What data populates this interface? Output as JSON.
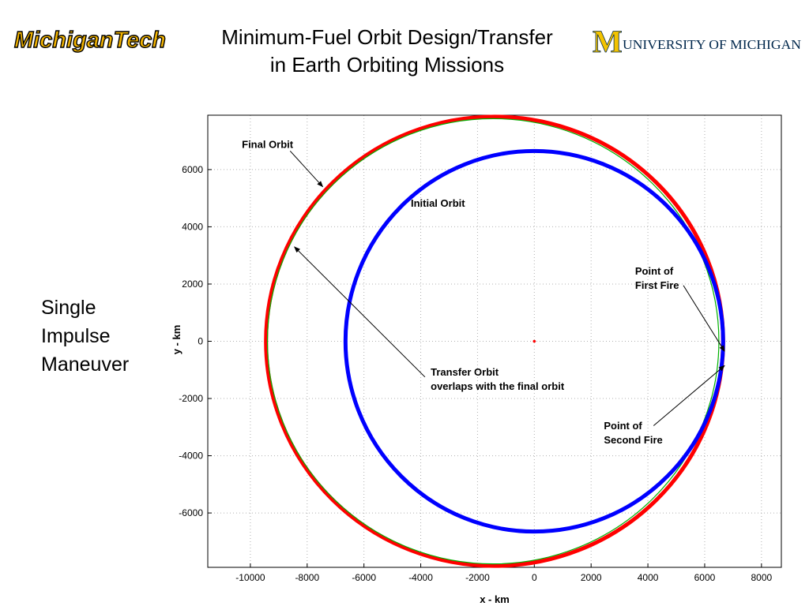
{
  "header": {
    "title_line1": "Minimum-Fuel Orbit Design/Transfer",
    "title_line2": "in Earth Orbiting Missions",
    "logo_left_text": "MichiganTech",
    "logo_right_letter": "M",
    "logo_right_text": "UNIVERSITY OF MICHIGAN"
  },
  "side_label": {
    "line1": "Single",
    "line2": "Impulse",
    "line3": "Maneuver"
  },
  "colors": {
    "final_orbit": "#ff0000",
    "initial_orbit": "#0000ff",
    "transfer_orbit": "#00b000",
    "earth_center": "#ff0000",
    "grid": "#b0b0b0",
    "logo_mtu": "#f2b300",
    "logo_um_maize": "#f3c300",
    "logo_um_text": "#00274c"
  },
  "chart_data": {
    "type": "scatter",
    "title": "",
    "xlabel": "x - km",
    "ylabel": "y - km",
    "xlim": [
      -11500,
      8700
    ],
    "ylim": [
      -7900,
      7900
    ],
    "xticks": [
      -10000,
      -8000,
      -6000,
      -4000,
      -2000,
      0,
      2000,
      4000,
      6000,
      8000
    ],
    "yticks": [
      -6000,
      -4000,
      -2000,
      0,
      2000,
      4000,
      6000
    ],
    "grid": true,
    "series": [
      {
        "key": "final",
        "kind": "ellipse",
        "center": [
          -1400,
          0
        ],
        "semi_axes": [
          8050,
          7850
        ]
      },
      {
        "key": "transfer",
        "kind": "ellipse",
        "center": [
          -1450,
          0
        ],
        "semi_axes": [
          7950,
          7780
        ]
      },
      {
        "key": "initial",
        "kind": "ellipse",
        "center": [
          0,
          0
        ],
        "semi_axes": [
          6650,
          6650
        ]
      },
      {
        "key": "earth",
        "kind": "point",
        "x": 0,
        "y": 0
      }
    ],
    "annotations": [
      {
        "key": "final",
        "lines": [
          "Final Orbit"
        ],
        "text_at": [
          -10300,
          6750
        ],
        "arrow_from": [
          -8600,
          6650
        ],
        "arrow_to": [
          -7450,
          5400
        ]
      },
      {
        "key": "initial",
        "lines": [
          "Initial Orbit"
        ],
        "text_at": [
          -4350,
          4700
        ]
      },
      {
        "key": "first",
        "lines": [
          "Point of",
          "First Fire"
        ],
        "text_at": [
          3550,
          2330
        ],
        "arrow_from": [
          5250,
          1950
        ],
        "arrow_to": [
          6700,
          -350
        ]
      },
      {
        "key": "transfer",
        "lines": [
          "Transfer Orbit",
          "overlaps with the final orbit"
        ],
        "text_at": [
          -3650,
          -1200
        ],
        "arrow_from": [
          -3850,
          -1250
        ],
        "arrow_to": [
          -8450,
          3300
        ]
      },
      {
        "key": "second",
        "lines": [
          "Point of",
          "Second Fire"
        ],
        "text_at": [
          2450,
          -3080
        ],
        "arrow_from": [
          4200,
          -2950
        ],
        "arrow_to": [
          6700,
          -850
        ]
      }
    ]
  }
}
